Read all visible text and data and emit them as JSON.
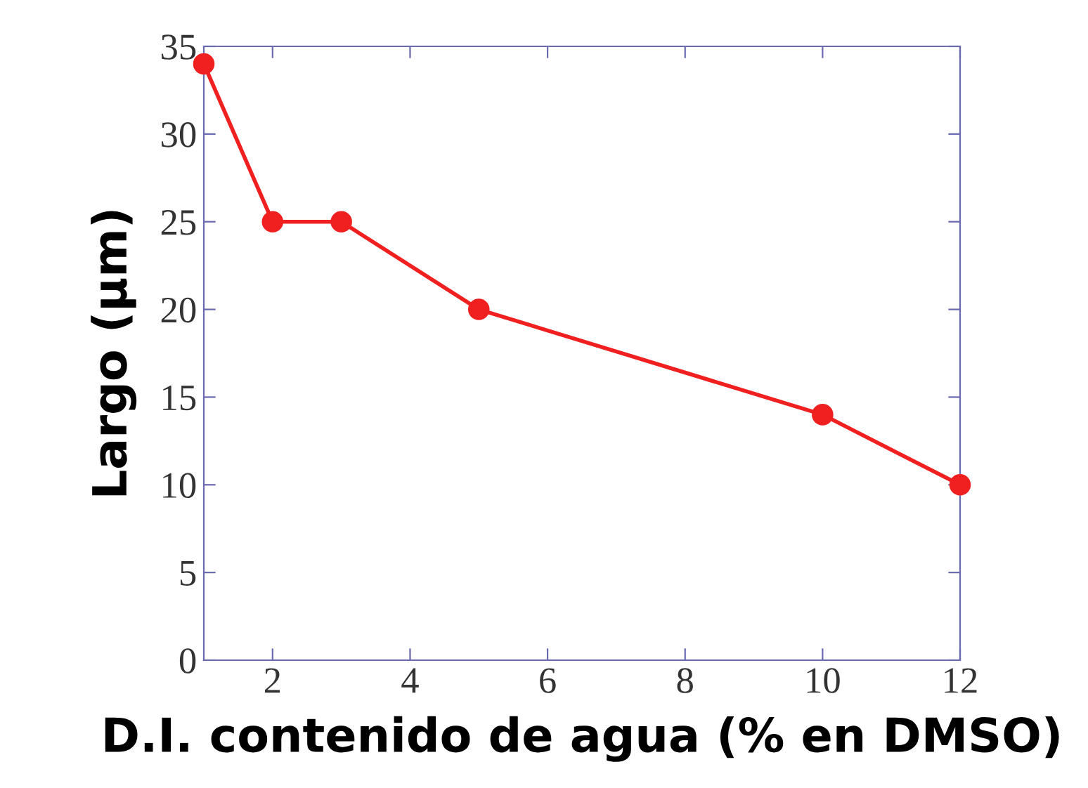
{
  "chart_data": {
    "type": "line",
    "xlabel": "D.I. contenido de agua (% en DMSO)",
    "ylabel": "Largo (μm)",
    "x": [
      1,
      2,
      3,
      5,
      10,
      12
    ],
    "series": [
      {
        "color": "#f02020",
        "values": [
          34,
          25,
          25,
          20,
          14,
          10
        ]
      }
    ],
    "xlim": [
      1,
      12
    ],
    "xticks": [
      2,
      4,
      6,
      8,
      10,
      12
    ],
    "ylim": [
      0,
      35
    ],
    "yticks": [
      0,
      5,
      10,
      15,
      20,
      25,
      30,
      35
    ],
    "marker": "circle",
    "line_style": "solid",
    "grid": false,
    "legend": false
  }
}
